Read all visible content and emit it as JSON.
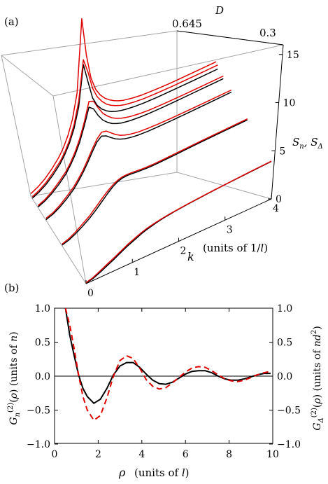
{
  "panel_a": {
    "label": "(a)",
    "axis_d_symbol": "D",
    "axis_d_labels": [
      "0.645",
      "0.3"
    ],
    "z_label": "S_n, S_Δ",
    "k_label_symbol": "k",
    "k_label_units": "(units of 1/l)"
  },
  "panel_b": {
    "label": "(b)",
    "left_ylabel": "G_n^(2)(ρ)  (units of n)",
    "right_ylabel": "G_Δ^(2)(ρ)  (units of nd²)",
    "xlabel_symbol": "ρ",
    "xlabel_units": "(units of l)"
  },
  "colors": {
    "S_n": "#000000",
    "S_Delta": "#e00000",
    "box": "#a0a0a0"
  },
  "chart_data": [
    {
      "type": "line",
      "panel": "(a)",
      "projection": "3d",
      "x_axis": {
        "name": "k",
        "units": "1/l",
        "range": [
          0,
          4
        ],
        "ticks": [
          0,
          1,
          2,
          3,
          4
        ]
      },
      "y_axis": {
        "name": "D",
        "range": [
          0.3,
          0.645
        ],
        "ticks": [
          0.645,
          0.3
        ]
      },
      "z_axis": {
        "name": "S_n, S_Δ",
        "range": [
          0,
          16
        ],
        "ticks": [
          0,
          5,
          10,
          15
        ]
      },
      "k_grid": [
        0,
        0.15,
        0.3,
        0.45,
        0.6,
        0.7,
        0.8,
        0.9,
        1.0,
        1.1,
        1.2,
        1.3,
        1.4,
        1.5,
        1.6,
        1.7,
        1.8,
        1.9,
        2.0,
        2.2,
        2.4,
        2.7,
        3.0,
        3.5,
        4.0
      ],
      "series": [
        {
          "name": "S_n",
          "D": 0.3,
          "values": [
            0.05,
            0.2,
            0.5,
            0.85,
            1.2,
            1.45,
            1.7,
            1.95,
            2.15,
            2.35,
            2.55,
            2.72,
            2.85,
            2.97,
            3.07,
            3.15,
            3.22,
            3.28,
            3.33,
            3.42,
            3.5,
            3.6,
            3.68,
            3.8,
            3.9
          ]
        },
        {
          "name": "S_Δ",
          "D": 0.3,
          "values": [
            0.1,
            0.3,
            0.65,
            1.0,
            1.35,
            1.6,
            1.85,
            2.1,
            2.3,
            2.5,
            2.68,
            2.83,
            2.95,
            3.05,
            3.13,
            3.2,
            3.26,
            3.31,
            3.36,
            3.45,
            3.52,
            3.62,
            3.7,
            3.82,
            3.92
          ]
        },
        {
          "name": "S_n",
          "D": 0.45,
          "values": [
            0.05,
            0.25,
            0.6,
            1.05,
            1.55,
            1.95,
            2.4,
            2.85,
            3.3,
            3.7,
            4.0,
            4.15,
            4.18,
            4.15,
            4.1,
            4.06,
            4.02,
            4.0,
            4.0,
            4.02,
            4.05,
            4.1,
            4.15,
            4.2,
            4.25
          ]
        },
        {
          "name": "S_Δ",
          "D": 0.45,
          "values": [
            0.15,
            0.4,
            0.8,
            1.3,
            1.8,
            2.25,
            2.7,
            3.15,
            3.55,
            3.9,
            4.15,
            4.28,
            4.3,
            4.27,
            4.22,
            4.18,
            4.14,
            4.12,
            4.12,
            4.14,
            4.17,
            4.21,
            4.26,
            4.31,
            4.36
          ]
        },
        {
          "name": "S_n",
          "D": 0.55,
          "values": [
            0.05,
            0.3,
            0.7,
            1.25,
            1.9,
            2.5,
            3.2,
            4.0,
            4.9,
            5.7,
            6.1,
            5.9,
            5.5,
            5.15,
            4.9,
            4.72,
            4.6,
            4.52,
            4.46,
            4.4,
            4.38,
            4.38,
            4.4,
            4.45,
            4.5
          ]
        },
        {
          "name": "S_Δ",
          "D": 0.55,
          "values": [
            0.2,
            0.45,
            0.9,
            1.5,
            2.15,
            2.75,
            3.45,
            4.3,
            5.2,
            6.0,
            6.5,
            6.4,
            6.0,
            5.6,
            5.3,
            5.1,
            4.96,
            4.86,
            4.78,
            4.7,
            4.66,
            4.64,
            4.65,
            4.68,
            4.72
          ]
        },
        {
          "name": "S_n",
          "D": 0.6,
          "values": [
            0.05,
            0.35,
            0.8,
            1.4,
            2.15,
            2.85,
            3.7,
            4.8,
            6.3,
            8.0,
            7.6,
            6.7,
            6.0,
            5.55,
            5.2,
            4.98,
            4.82,
            4.72,
            4.64,
            4.55,
            4.5,
            4.48,
            4.5,
            4.54,
            4.58
          ]
        },
        {
          "name": "S_Δ",
          "D": 0.6,
          "values": [
            0.2,
            0.5,
            1.0,
            1.65,
            2.4,
            3.1,
            4.0,
            5.15,
            6.7,
            8.6,
            8.4,
            7.5,
            6.7,
            6.2,
            5.8,
            5.52,
            5.32,
            5.18,
            5.06,
            4.92,
            4.84,
            4.8,
            4.8,
            4.82,
            4.86
          ]
        },
        {
          "name": "S_n",
          "D": 0.635,
          "values": [
            0.05,
            0.38,
            0.85,
            1.5,
            2.3,
            3.05,
            4.0,
            5.3,
            7.3,
            11.5,
            9.5,
            7.6,
            6.6,
            6.0,
            5.6,
            5.3,
            5.1,
            4.96,
            4.85,
            4.72,
            4.64,
            4.6,
            4.6,
            4.62,
            4.66
          ]
        },
        {
          "name": "S_Δ",
          "D": 0.635,
          "values": [
            0.2,
            0.55,
            1.05,
            1.75,
            2.55,
            3.3,
            4.3,
            5.7,
            7.9,
            12.0,
            10.5,
            8.6,
            7.5,
            6.8,
            6.3,
            5.95,
            5.7,
            5.5,
            5.36,
            5.2,
            5.1,
            5.04,
            5.02,
            5.04,
            5.08
          ]
        },
        {
          "name": "S_Δ",
          "D": 0.645,
          "values": [
            0.25,
            0.6,
            1.1,
            1.8,
            2.65,
            3.45,
            4.5,
            6.0,
            8.5,
            16.0,
            12.0,
            9.4,
            8.0,
            7.2,
            6.65,
            6.25,
            5.95,
            5.72,
            5.55,
            5.35,
            5.22,
            5.14,
            5.1,
            5.12,
            5.15
          ]
        }
      ]
    },
    {
      "type": "line",
      "panel": "(b)",
      "xlabel": "ρ (units of l)",
      "ylabel": "G_n^(2)(ρ) (units of n)",
      "ylabel_right": "G_Δ^(2)(ρ) (units of nd²)",
      "xlim": [
        0,
        10
      ],
      "ylim": [
        -1.0,
        1.0
      ],
      "xticks": [
        0,
        2,
        4,
        6,
        8,
        10
      ],
      "yticks": [
        -1.0,
        -0.5,
        0.0,
        0.5,
        1.0
      ],
      "x": [
        0.5,
        0.7,
        0.9,
        1.1,
        1.3,
        1.5,
        1.8,
        2.1,
        2.4,
        2.7,
        3.0,
        3.3,
        3.6,
        3.9,
        4.2,
        4.5,
        4.8,
        5.1,
        5.4,
        5.7,
        6.0,
        6.3,
        6.6,
        6.9,
        7.2,
        7.5,
        7.8,
        8.1,
        8.4,
        8.7,
        9.0,
        9.3,
        9.6,
        9.9
      ],
      "series": [
        {
          "name": "G_n^(2)",
          "style": "solid",
          "color": "#000000",
          "values": [
            1.0,
            0.6,
            0.3,
            0.02,
            -0.18,
            -0.3,
            -0.4,
            -0.34,
            -0.18,
            0.02,
            0.15,
            0.2,
            0.2,
            0.13,
            0.03,
            -0.06,
            -0.11,
            -0.12,
            -0.09,
            -0.03,
            0.03,
            0.07,
            0.08,
            0.08,
            0.05,
            0.0,
            -0.04,
            -0.06,
            -0.06,
            -0.04,
            -0.01,
            0.02,
            0.04,
            0.04
          ]
        },
        {
          "name": "G_Δ^(2)",
          "style": "dashed",
          "color": "#e00000",
          "values": [
            1.0,
            0.75,
            0.4,
            0.02,
            -0.3,
            -0.5,
            -0.65,
            -0.58,
            -0.32,
            0.0,
            0.23,
            0.3,
            0.26,
            0.12,
            -0.05,
            -0.15,
            -0.19,
            -0.17,
            -0.1,
            -0.02,
            0.06,
            0.12,
            0.14,
            0.13,
            0.08,
            0.02,
            -0.04,
            -0.07,
            -0.08,
            -0.06,
            -0.02,
            0.02,
            0.05,
            0.07
          ]
        }
      ]
    }
  ]
}
